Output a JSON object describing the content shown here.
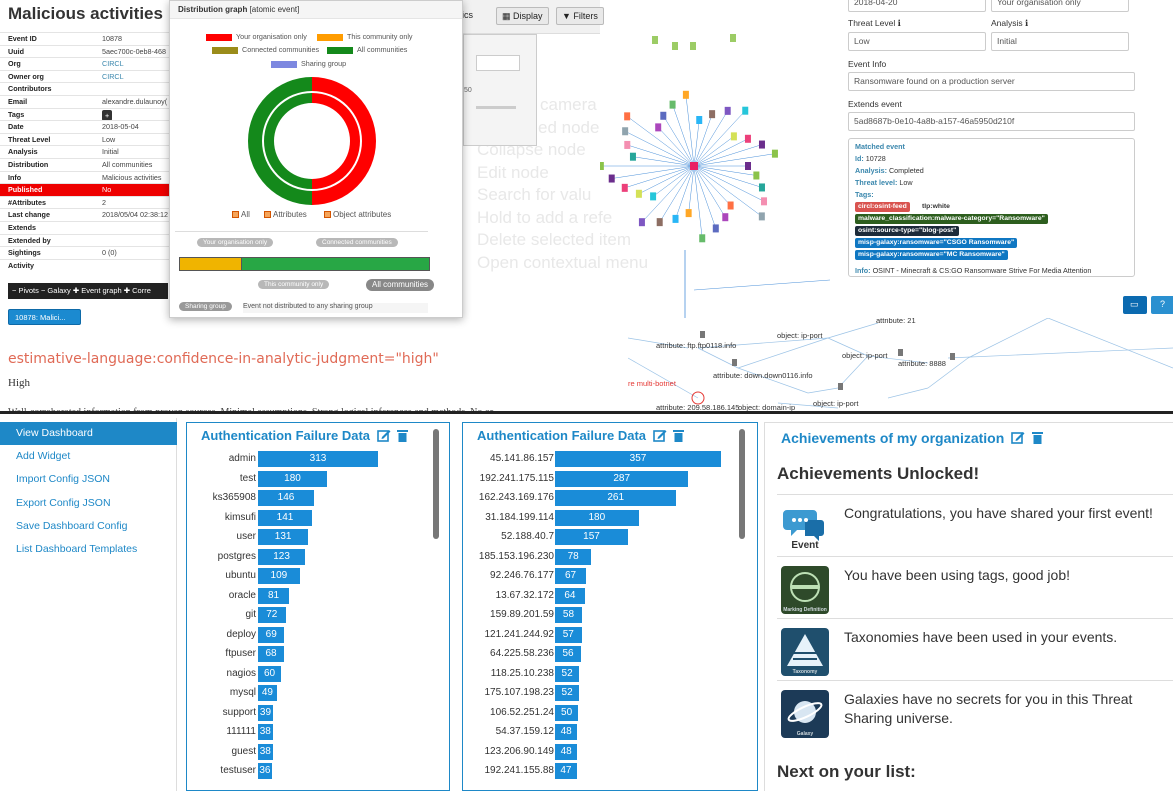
{
  "event_panel": {
    "title": "Malicious activities",
    "rows": [
      {
        "key": "Event ID",
        "value": "10878"
      },
      {
        "key": "Uuid",
        "value": "5aec700c-0eb8-468"
      },
      {
        "key": "Org",
        "value": "CIRCL"
      },
      {
        "key": "Owner org",
        "value": "CIRCL"
      },
      {
        "key": "Contributors",
        "value": ""
      },
      {
        "key": "Email",
        "value": "alexandre.dulaunoy("
      },
      {
        "key": "Tags",
        "value": "+"
      },
      {
        "key": "Date",
        "value": "2018-05-04"
      },
      {
        "key": "Threat Level",
        "value": "Low"
      },
      {
        "key": "Analysis",
        "value": "Initial"
      },
      {
        "key": "Distribution",
        "value": "All communities"
      },
      {
        "key": "Info",
        "value": "Malicious activities"
      },
      {
        "key": "Published",
        "value": "No"
      },
      {
        "key": "#Attributes",
        "value": "2"
      },
      {
        "key": "Last change",
        "value": "2018/05/04 02:38:12"
      },
      {
        "key": "Extends",
        "value": ""
      },
      {
        "key": "Extended by",
        "value": ""
      },
      {
        "key": "Sightings",
        "value": "0 (0)"
      },
      {
        "key": "Activity",
        "value": ""
      }
    ],
    "pivot_bar": "− Pivots  − Galaxy  ✚ Event graph  ✚ Corre",
    "pivot_pill": "10878: Malici..."
  },
  "distribution": {
    "title": "Distribution graph",
    "subtitle": "[atomic event]",
    "legend": [
      {
        "label": "Your organisation only",
        "color": "#ff0000"
      },
      {
        "label": "This community only",
        "color": "#ff9c00"
      },
      {
        "label": "Connected communities",
        "color": "#9a8c1a"
      },
      {
        "label": "All communities",
        "color": "#14891b"
      },
      {
        "label": "Sharing group",
        "color": "#7d88e0"
      }
    ],
    "checkboxes": [
      "All",
      "Attributes",
      "Object attributes"
    ],
    "scale_labels": [
      "Your organisation only",
      "Connected communities",
      "This community only",
      "All communities"
    ],
    "bar_fraction_yellow": 0.25,
    "sharing_group_label": "Sharing group",
    "sharing_group_text": "Event not distributed to any sharing group"
  },
  "toolbar": {
    "display": "Display",
    "filters": "Filters",
    "partial": "ics"
  },
  "context_menu_ghost": [
    "camera",
    "ed node",
    "Collapse node",
    "Edit node",
    "Search for valu",
    "Hold to add a refe",
    "Delete selected item",
    "Open contextual menu"
  ],
  "graph": {
    "labels_bottom": [
      "attribute: ftp.ftp0118.info",
      "object: ip-port",
      "object: ip-port",
      "attribute: 8888",
      "attribute: down.down0116.info",
      "attribute: 209.58.186.145",
      "object: domain-ip",
      "object: ip-port",
      "re multi-botnet",
      "attribute: 21"
    ]
  },
  "right_form": {
    "date": "2018-04-20",
    "distribution": "Your organisation only",
    "threat_level_label": "Threat Level",
    "analysis_label": "Analysis",
    "threat_level": "Low",
    "analysis": "Initial",
    "event_info_label": "Event Info",
    "event_info": "Ransomware found on a production server",
    "extends_label": "Extends event",
    "extends": "5ad8687b-0e10-4a8b-a157-46a5950d210f",
    "matched": {
      "title": "Matched event",
      "id_label": "Id:",
      "id": "10728",
      "analysis_label": "Analysis:",
      "analysis": "Completed",
      "threat_label": "Threat level:",
      "threat": "Low",
      "tags_label": "Tags:",
      "tags": [
        {
          "text": "circl:osint-feed",
          "color": "#d9534f"
        },
        {
          "text": "tlp:white",
          "color": "#ffffff"
        },
        {
          "text": "malware_classification:malware-category=\"Ransomware\"",
          "color": "#2d5e1e"
        },
        {
          "text": "osint:source-type=\"blog-post\"",
          "color": "#1d2b3a"
        },
        {
          "text": "misp-galaxy:ransomware=\"CSGO Ransomware\"",
          "color": "#0f77c2"
        },
        {
          "text": "misp-galaxy:ransomware=\"MC Ransomware\"",
          "color": "#0f77c2"
        }
      ],
      "info_label": "Info:",
      "info": "OSINT - Minecraft & CS:GO Ransomware Strive For Media Attention"
    },
    "help": "?"
  },
  "taxonomy": {
    "tag": "estimative-language:confidence-in-analytic-judgment=\"high\"",
    "value": "High",
    "description": "Well-corroborated information from proven sources. Minimal assumptions. Strong logical inferences and methods. No or"
  },
  "dashboard_menu": [
    "View Dashboard",
    "Add Widget",
    "Import Config JSON",
    "Export Config JSON",
    "Save Dashboard Config",
    "List Dashboard Templates"
  ],
  "widget1": {
    "title": "Authentication Failure Data",
    "rows": [
      {
        "label": "admin",
        "value": 313
      },
      {
        "label": "test",
        "value": 180
      },
      {
        "label": "ks365908",
        "value": 146
      },
      {
        "label": "kimsufi",
        "value": 141
      },
      {
        "label": "user",
        "value": 131
      },
      {
        "label": "postgres",
        "value": 123
      },
      {
        "label": "ubuntu",
        "value": 109
      },
      {
        "label": "oracle",
        "value": 81
      },
      {
        "label": "git",
        "value": 72
      },
      {
        "label": "deploy",
        "value": 69
      },
      {
        "label": "ftpuser",
        "value": 68
      },
      {
        "label": "nagios",
        "value": 60
      },
      {
        "label": "mysql",
        "value": 49
      },
      {
        "label": "support",
        "value": 39
      },
      {
        "label": "111111",
        "value": 38
      },
      {
        "label": "guest",
        "value": 38
      },
      {
        "label": "testuser",
        "value": 36
      }
    ]
  },
  "widget2": {
    "title": "Authentication Failure Data",
    "rows": [
      {
        "label": "45.141.86.157",
        "value": 357
      },
      {
        "label": "192.241.175.115",
        "value": 287
      },
      {
        "label": "162.243.169.176",
        "value": 261
      },
      {
        "label": "31.184.199.114",
        "value": 180
      },
      {
        "label": "52.188.40.7",
        "value": 157
      },
      {
        "label": "185.153.196.230",
        "value": 78
      },
      {
        "label": "92.246.76.177",
        "value": 67
      },
      {
        "label": "13.67.32.172",
        "value": 64
      },
      {
        "label": "159.89.201.59",
        "value": 58
      },
      {
        "label": "121.241.244.92",
        "value": 57
      },
      {
        "label": "64.225.58.236",
        "value": 56
      },
      {
        "label": "118.25.10.238",
        "value": 52
      },
      {
        "label": "175.107.198.23",
        "value": 52
      },
      {
        "label": "106.52.251.24",
        "value": 50
      },
      {
        "label": "54.37.159.12",
        "value": 48
      },
      {
        "label": "123.206.90.149",
        "value": 48
      },
      {
        "label": "192.241.155.88",
        "value": 47
      }
    ]
  },
  "achievements": {
    "title": "Achievements of my organization",
    "unlocked_heading": "Achievements Unlocked!",
    "items": [
      {
        "icon": "event-icon",
        "icon_caption": "Event",
        "text": "Congratulations, you have shared your first event!"
      },
      {
        "icon": "tags-icon",
        "icon_caption": "Marking Definition",
        "text": "You have been using tags, good job!"
      },
      {
        "icon": "taxonomy-icon",
        "icon_caption": "Taxonomy",
        "text": "Taxonomies have been used in your events."
      },
      {
        "icon": "galaxy-icon",
        "icon_caption": "Galaxy",
        "text": "Galaxies have no secrets for you in this Threat Sharing universe."
      }
    ],
    "next_heading": "Next on your list:"
  },
  "colors": {
    "accent": "#1e88c7",
    "bar": "#1a8cd8",
    "red": "#ff0000",
    "green": "#14891b",
    "orange": "#ff9c00"
  }
}
